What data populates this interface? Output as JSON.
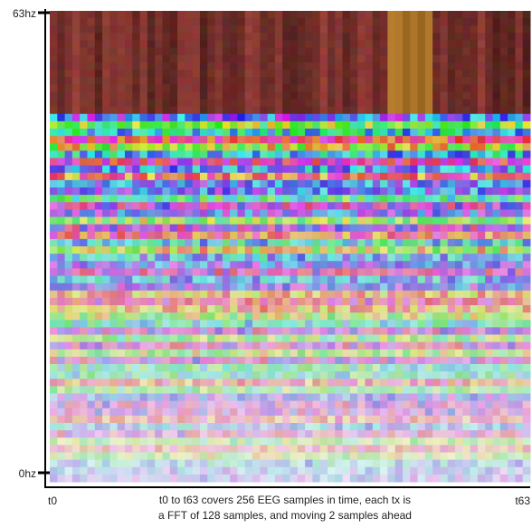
{
  "y_axis": {
    "top_label": "63hz",
    "bottom_label": "0hz"
  },
  "x_axis": {
    "left_label": "t0",
    "right_label": "t63"
  },
  "caption": {
    "line1": "t0 to t63 covers 256 EEG samples in time, each tx is",
    "line2": "a FFT of 128 samples, and moving 2 samples ahead"
  }
}
